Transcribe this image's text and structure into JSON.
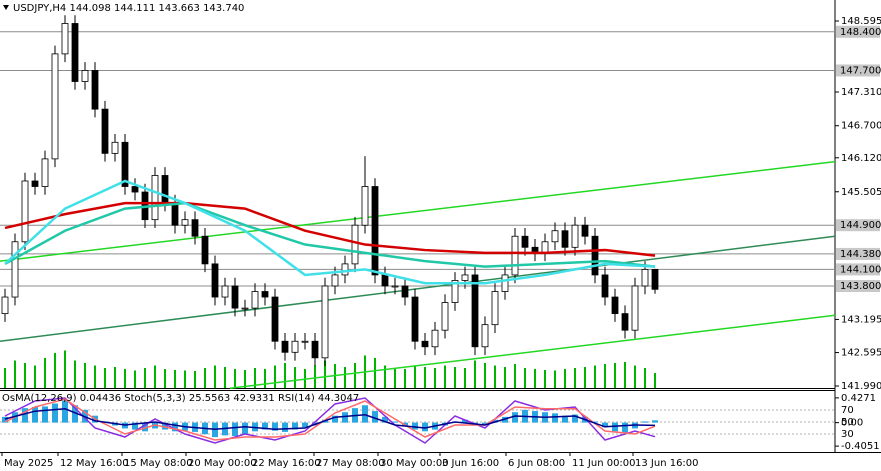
{
  "chart_data": {
    "type": "candlestick",
    "title": "USDJPY,H4 144.098 144.111 143.663 143.740",
    "xlim": [
      -0.5,
      83
    ],
    "ylim": [
      141.954,
      148.975
    ],
    "yticks": [
      148.595,
      {
        "value": 147.31,
        "label": "147.310"
      },
      {
        "value": 146.7,
        "label": "146.700"
      },
      {
        "value": 146.12,
        "label": "146.120"
      },
      145.505,
      143.195,
      142.595,
      {
        "value": 141.99,
        "label": "141.990"
      }
    ],
    "xticks": [
      {
        "value": -0.3,
        "label": "May 2025"
      },
      {
        "value": 5.3,
        "label": "12 May 16:00"
      },
      {
        "value": 11.7,
        "label": "15 May 08:00"
      },
      {
        "value": 18.1,
        "label": "20 May 00:00"
      },
      {
        "value": 24.5,
        "label": "22 May 16:00"
      },
      {
        "value": 30.9,
        "label": "27 May 08:00"
      },
      {
        "value": 37.3,
        "label": "30 May 00:00"
      },
      {
        "value": 43.5,
        "label": "3 Jun 16:00"
      },
      {
        "value": 50.1,
        "label": "6 Jun 08:00"
      },
      {
        "value": 56.5,
        "label": "11 Jun 00:00"
      },
      {
        "value": 62.8,
        "label": "13 Jun 16:00"
      }
    ],
    "levels": [
      {
        "value": 148.4,
        "label": "148.400"
      },
      {
        "value": 147.7,
        "label": "147.700"
      },
      {
        "value": 144.9,
        "label": "144.900"
      },
      {
        "value": 144.38,
        "label": "144.380"
      },
      {
        "value": 144.1,
        "label": "144.100"
      },
      {
        "value": 143.8,
        "label": "143.800"
      }
    ],
    "level_color": "#8c8c8c",
    "up_color": "#ffffff",
    "down_color": "#000000",
    "open": [
      143.3,
      143.6,
      144.6,
      145.7,
      145.6,
      146.1,
      148.0,
      148.55,
      147.5,
      147.7,
      147.0,
      146.2,
      146.4,
      145.6,
      145.5,
      145.0,
      145.8,
      145.3,
      144.9,
      145.0,
      144.7,
      144.2,
      143.6,
      143.8,
      143.4,
      143.4,
      143.7,
      143.6,
      142.8,
      142.6,
      142.8,
      142.8,
      142.5,
      143.8,
      144.0,
      144.2,
      144.9,
      145.6,
      144.0,
      143.8,
      143.8,
      143.6,
      142.8,
      142.7,
      143.0,
      143.5,
      143.9,
      144.0,
      142.7,
      143.1,
      143.7,
      144.0,
      144.7,
      144.5,
      144.4,
      144.6,
      144.8,
      144.5,
      144.9,
      144.7,
      144.0,
      143.6,
      143.3,
      143.0,
      143.8,
      144.1
    ],
    "high": [
      143.75,
      144.75,
      145.85,
      145.85,
      146.25,
      148.15,
      148.7,
      148.7,
      147.85,
      147.85,
      147.15,
      146.55,
      146.55,
      145.75,
      145.65,
      145.95,
      145.95,
      145.45,
      145.15,
      145.15,
      144.85,
      144.35,
      143.95,
      143.95,
      143.55,
      143.85,
      143.85,
      143.75,
      142.95,
      142.95,
      142.95,
      142.95,
      143.95,
      144.15,
      144.35,
      145.05,
      146.15,
      145.75,
      144.15,
      143.95,
      143.95,
      143.75,
      142.95,
      143.15,
      143.65,
      144.05,
      144.15,
      144.15,
      143.25,
      143.85,
      144.15,
      144.85,
      144.85,
      144.65,
      144.75,
      144.95,
      144.95,
      145.05,
      145.05,
      144.85,
      144.15,
      143.75,
      143.45,
      143.95,
      144.25,
      144.11
    ],
    "low": [
      143.15,
      143.45,
      144.45,
      145.45,
      145.45,
      145.95,
      147.85,
      147.35,
      147.35,
      146.85,
      146.05,
      146.05,
      145.45,
      145.35,
      144.85,
      144.85,
      145.15,
      144.75,
      144.75,
      144.55,
      144.05,
      143.45,
      143.45,
      143.25,
      143.25,
      143.25,
      143.45,
      142.65,
      142.45,
      142.45,
      142.65,
      142.35,
      142.35,
      143.65,
      143.85,
      144.05,
      144.75,
      143.85,
      143.65,
      143.65,
      143.45,
      142.65,
      142.55,
      142.55,
      142.85,
      143.35,
      143.75,
      142.55,
      142.55,
      142.95,
      143.55,
      143.85,
      144.35,
      144.25,
      144.25,
      144.45,
      144.35,
      144.35,
      144.55,
      143.85,
      143.45,
      143.15,
      142.85,
      142.85,
      143.65,
      143.66
    ],
    "close": [
      143.6,
      144.6,
      145.7,
      145.6,
      146.1,
      148.0,
      148.55,
      147.5,
      147.7,
      147.0,
      146.2,
      146.4,
      145.6,
      145.5,
      145.0,
      145.8,
      145.3,
      144.9,
      145.0,
      144.7,
      144.2,
      143.6,
      143.8,
      143.4,
      143.4,
      143.7,
      143.6,
      142.8,
      142.6,
      142.8,
      142.8,
      142.5,
      143.8,
      144.0,
      144.2,
      144.9,
      145.6,
      144.0,
      143.8,
      143.8,
      143.6,
      142.8,
      142.7,
      143.0,
      143.5,
      143.9,
      144.0,
      142.7,
      143.1,
      143.7,
      144.0,
      144.7,
      144.5,
      144.4,
      144.6,
      144.8,
      144.5,
      144.9,
      144.7,
      144.0,
      143.6,
      143.3,
      143.0,
      143.8,
      144.1,
      143.74
    ],
    "moving_averages": [
      {
        "color": "#d40000",
        "x": [
          0,
          6,
          12,
          18,
          24,
          30,
          36,
          42,
          48,
          54,
          60,
          65
        ],
        "values": [
          144.85,
          145.1,
          145.3,
          145.3,
          145.2,
          144.8,
          144.55,
          144.45,
          144.4,
          144.4,
          144.45,
          144.35
        ]
      },
      {
        "color": "#20c8a8",
        "x": [
          0,
          6,
          12,
          18,
          24,
          30,
          36,
          42,
          48,
          54,
          60,
          65
        ],
        "values": [
          144.2,
          144.8,
          145.2,
          145.3,
          144.9,
          144.55,
          144.4,
          144.25,
          144.15,
          144.2,
          144.25,
          144.15
        ]
      },
      {
        "color": "#40e0e8",
        "x": [
          0,
          6,
          12,
          18,
          24,
          30,
          36,
          42,
          48,
          54,
          60,
          65
        ],
        "values": [
          144.2,
          145.2,
          145.7,
          145.3,
          144.8,
          144.0,
          144.1,
          143.85,
          143.85,
          144.0,
          144.2,
          144.15
        ]
      }
    ],
    "trend_lines": [
      {
        "color": "#22d822",
        "x": [
          -0.5,
          83
        ],
        "values": [
          144.25,
          146.05
        ]
      },
      {
        "color": "#2e8b57",
        "x": [
          -0.5,
          83
        ],
        "values": [
          142.8,
          144.7
        ]
      },
      {
        "color": "#22d822",
        "x": [
          22.5,
          83
        ],
        "values": [
          141.95,
          143.27
        ]
      }
    ],
    "volume_lim": [
      0,
      100
    ],
    "volume_color": "#00b400",
    "volume": [
      40,
      55,
      50,
      45,
      60,
      70,
      75,
      55,
      50,
      45,
      40,
      42,
      38,
      35,
      40,
      45,
      38,
      36,
      35,
      34,
      40,
      45,
      42,
      38,
      36,
      40,
      38,
      45,
      50,
      42,
      38,
      45,
      55,
      48,
      42,
      50,
      65,
      60,
      45,
      40,
      38,
      45,
      42,
      40,
      45,
      42,
      40,
      55,
      50,
      45,
      42,
      48,
      40,
      38,
      36,
      35,
      38,
      40,
      42,
      45,
      48,
      50,
      52,
      45,
      40,
      30
    ],
    "indicator": {
      "title": "OsMA(12,26,9) 0.04436 Stoch(5,3,3) 25.5563 42.9331 RSI(14) 44.3047",
      "osma_lim": [
        -0.507,
        0.529
      ],
      "osma_ticks": [
        0.4271,
        {
          "value": 0,
          "label": "0.00"
        },
        -0.4051
      ],
      "osma_color": "#2ba6e0",
      "osma": [
        0.1,
        0.18,
        0.25,
        0.27,
        0.28,
        0.33,
        0.38,
        0.3,
        0.22,
        0.12,
        0.02,
        -0.05,
        -0.1,
        -0.12,
        -0.15,
        -0.1,
        -0.12,
        -0.15,
        -0.14,
        -0.16,
        -0.2,
        -0.25,
        -0.22,
        -0.23,
        -0.2,
        -0.15,
        -0.12,
        -0.14,
        -0.16,
        -0.12,
        -0.08,
        -0.05,
        0.05,
        0.12,
        0.18,
        0.25,
        0.3,
        0.2,
        0.1,
        0.02,
        -0.05,
        -0.12,
        -0.15,
        -0.12,
        -0.05,
        0.02,
        0.05,
        -0.05,
        -0.03,
        0.05,
        0.1,
        0.18,
        0.22,
        0.2,
        0.18,
        0.16,
        0.12,
        0.14,
        0.1,
        0.02,
        -0.08,
        -0.15,
        -0.18,
        -0.1,
        0.02,
        0.04
      ],
      "osc_lim": [
        0,
        100
      ],
      "osc_ticks": [
        70,
        50,
        30
      ],
      "x": [
        0,
        3,
        6,
        9,
        12,
        15,
        18,
        21,
        24,
        27,
        30,
        33,
        36,
        39,
        42,
        45,
        48,
        51,
        54,
        57,
        60,
        63,
        65
      ],
      "lines": [
        {
          "color": "#8a2be2",
          "values": [
            60,
            85,
            90,
            40,
            25,
            55,
            30,
            15,
            30,
            20,
            35,
            80,
            90,
            45,
            15,
            60,
            40,
            85,
            70,
            75,
            20,
            35,
            25.56
          ]
        },
        {
          "color": "#ff6a6a",
          "values": [
            50,
            75,
            88,
            55,
            30,
            45,
            35,
            20,
            25,
            25,
            30,
            65,
            85,
            55,
            25,
            45,
            45,
            75,
            72,
            72,
            35,
            30,
            42.93
          ]
        },
        {
          "color": "#00008b",
          "values": [
            55,
            68,
            72,
            52,
            45,
            50,
            42,
            38,
            42,
            38,
            40,
            58,
            62,
            45,
            40,
            50,
            45,
            60,
            58,
            60,
            42,
            45,
            44.3
          ]
        }
      ]
    }
  }
}
